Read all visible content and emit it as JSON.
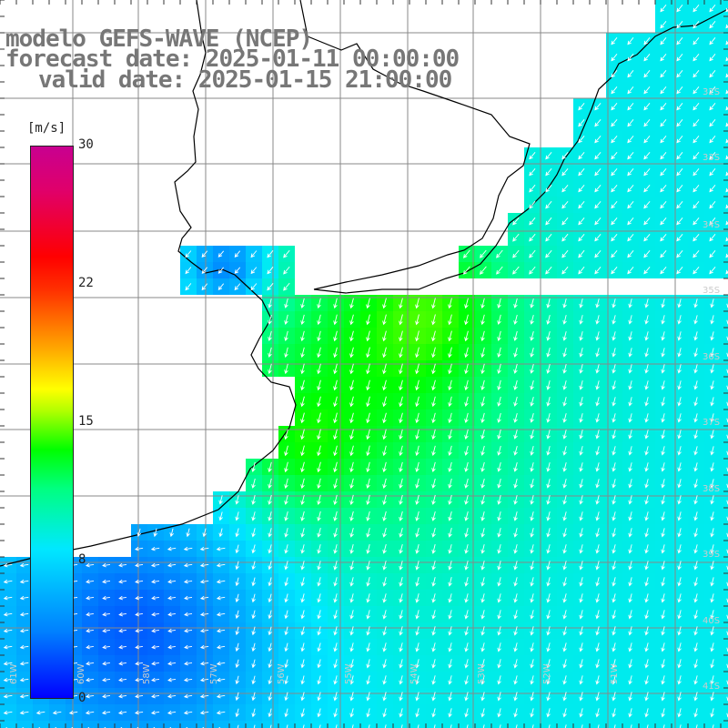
{
  "title": {
    "line1": "modelo GEFS-WAVE (NCEP)",
    "line2": "forecast date: 2025-01-11 00:00:00",
    "line3": "valid date: 2025-01-15 21:00:00"
  },
  "colorbar": {
    "units": "[m/s]",
    "ticks": [
      "30",
      "22",
      "15",
      "8",
      "0"
    ],
    "tick_values": [
      30,
      22,
      15,
      8,
      0
    ],
    "min": 0,
    "max": 30,
    "colors": [
      "#0000ff",
      "#0080ff",
      "#00e8ff",
      "#00ff80",
      "#00ff00",
      "#b0ff00",
      "#ffff00",
      "#ffa000",
      "#ff3000",
      "#ff0000",
      "#e0006a",
      "#c80090"
    ]
  },
  "latitude_labels": [
    "32S",
    "33S",
    "34S",
    "35S",
    "36S",
    "37S",
    "38S",
    "39S",
    "40S",
    "41S"
  ],
  "longitude_labels": [
    "61W",
    "60W",
    "58W",
    "57W",
    "56W",
    "55W",
    "54W",
    "53W",
    "52W",
    "51W"
  ],
  "map_colors": {
    "land": "#ffffff",
    "coast": "#000000",
    "grid": "#888888",
    "arrows": "#ffffff"
  }
}
